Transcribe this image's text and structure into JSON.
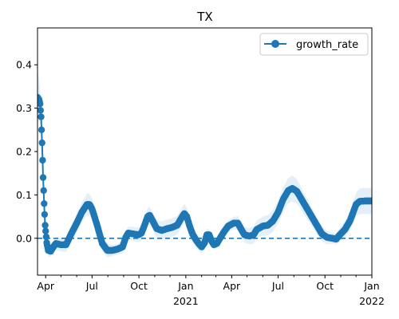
{
  "chart_data": {
    "type": "line",
    "title": "TX",
    "xlabel": "",
    "ylabel": "",
    "x_range": [
      "2020-03-16",
      "2022-01-01"
    ],
    "ylim": [
      -0.085,
      0.485
    ],
    "grid": false,
    "legend": {
      "placement": "top-right",
      "entries": [
        "growth_rate"
      ]
    },
    "colors": {
      "line": "#1f77b4",
      "band": "#c6dbef",
      "zero_line": "#1f77b4"
    },
    "reference_line": {
      "y": 0.0,
      "style": "dashed"
    },
    "y_ticks": [
      {
        "value": 0.0,
        "label": "0.0"
      },
      {
        "value": 0.1,
        "label": "0.1"
      },
      {
        "value": 0.2,
        "label": "0.2"
      },
      {
        "value": 0.3,
        "label": "0.3"
      },
      {
        "value": 0.4,
        "label": "0.4"
      }
    ],
    "x_major_ticks": [
      {
        "date": "2020-04-01",
        "label": "Apr",
        "sublabel": ""
      },
      {
        "date": "2020-07-01",
        "label": "Jul",
        "sublabel": ""
      },
      {
        "date": "2020-10-01",
        "label": "Oct",
        "sublabel": ""
      },
      {
        "date": "2021-01-01",
        "label": "Jan",
        "sublabel": "2021"
      },
      {
        "date": "2021-04-01",
        "label": "Apr",
        "sublabel": ""
      },
      {
        "date": "2021-07-01",
        "label": "Jul",
        "sublabel": ""
      },
      {
        "date": "2021-10-01",
        "label": "Oct",
        "sublabel": ""
      },
      {
        "date": "2022-01-01",
        "label": "Jan",
        "sublabel": "2022"
      }
    ],
    "x_minor_ticks": [
      "2020-05-01",
      "2020-06-01",
      "2020-08-01",
      "2020-09-01",
      "2020-11-01",
      "2020-12-01",
      "2021-02-01",
      "2021-03-01",
      "2021-05-01",
      "2021-06-01",
      "2021-08-01",
      "2021-09-01",
      "2021-11-01",
      "2021-12-01"
    ],
    "series": [
      {
        "name": "growth_rate",
        "points": [
          [
            "2020-03-16",
            0.325
          ],
          [
            "2020-03-19",
            0.32
          ],
          [
            "2020-03-21",
            0.31
          ],
          [
            "2020-03-23",
            0.28
          ],
          [
            "2020-03-25",
            0.22
          ],
          [
            "2020-03-27",
            0.14
          ],
          [
            "2020-03-29",
            0.08
          ],
          [
            "2020-03-31",
            0.03
          ],
          [
            "2020-04-03",
            -0.01
          ],
          [
            "2020-04-06",
            -0.028
          ],
          [
            "2020-04-11",
            -0.03
          ],
          [
            "2020-04-16",
            -0.02
          ],
          [
            "2020-04-21",
            -0.012
          ],
          [
            "2020-05-01",
            -0.015
          ],
          [
            "2020-05-11",
            -0.015
          ],
          [
            "2020-05-21",
            0.01
          ],
          [
            "2020-06-01",
            0.035
          ],
          [
            "2020-06-11",
            0.06
          ],
          [
            "2020-06-21",
            0.078
          ],
          [
            "2020-06-26",
            0.078
          ],
          [
            "2020-07-01",
            0.068
          ],
          [
            "2020-07-11",
            0.03
          ],
          [
            "2020-07-21",
            -0.012
          ],
          [
            "2020-07-31",
            -0.028
          ],
          [
            "2020-08-10",
            -0.028
          ],
          [
            "2020-08-20",
            -0.025
          ],
          [
            "2020-08-30",
            -0.02
          ],
          [
            "2020-09-05",
            0.002
          ],
          [
            "2020-09-10",
            0.012
          ],
          [
            "2020-09-20",
            0.01
          ],
          [
            "2020-09-30",
            0.008
          ],
          [
            "2020-10-06",
            0.012
          ],
          [
            "2020-10-12",
            0.03
          ],
          [
            "2020-10-18",
            0.05
          ],
          [
            "2020-10-22",
            0.053
          ],
          [
            "2020-10-28",
            0.04
          ],
          [
            "2020-11-05",
            0.022
          ],
          [
            "2020-11-15",
            0.018
          ],
          [
            "2020-11-25",
            0.022
          ],
          [
            "2020-12-05",
            0.025
          ],
          [
            "2020-12-15",
            0.03
          ],
          [
            "2020-12-25",
            0.05
          ],
          [
            "2020-12-29",
            0.057
          ],
          [
            "2021-01-03",
            0.05
          ],
          [
            "2021-01-08",
            0.03
          ],
          [
            "2021-01-14",
            0.01
          ],
          [
            "2021-01-20",
            -0.002
          ],
          [
            "2021-01-26",
            -0.012
          ],
          [
            "2021-02-01",
            -0.02
          ],
          [
            "2021-02-07",
            -0.01
          ],
          [
            "2021-02-11",
            0.008
          ],
          [
            "2021-02-16",
            0.008
          ],
          [
            "2021-02-20",
            -0.005
          ],
          [
            "2021-02-25",
            -0.015
          ],
          [
            "2021-03-03",
            -0.012
          ],
          [
            "2021-03-10",
            0.002
          ],
          [
            "2021-03-17",
            0.015
          ],
          [
            "2021-03-25",
            0.028
          ],
          [
            "2021-04-05",
            0.035
          ],
          [
            "2021-04-13",
            0.035
          ],
          [
            "2021-04-20",
            0.02
          ],
          [
            "2021-04-26",
            0.008
          ],
          [
            "2021-05-06",
            0.005
          ],
          [
            "2021-05-14",
            0.008
          ],
          [
            "2021-05-20",
            0.02
          ],
          [
            "2021-06-01",
            0.028
          ],
          [
            "2021-06-11",
            0.03
          ],
          [
            "2021-06-21",
            0.04
          ],
          [
            "2021-07-01",
            0.06
          ],
          [
            "2021-07-11",
            0.09
          ],
          [
            "2021-07-21",
            0.11
          ],
          [
            "2021-07-29",
            0.115
          ],
          [
            "2021-08-07",
            0.108
          ],
          [
            "2021-08-16",
            0.09
          ],
          [
            "2021-08-26",
            0.07
          ],
          [
            "2021-09-05",
            0.05
          ],
          [
            "2021-09-15",
            0.03
          ],
          [
            "2021-09-25",
            0.01
          ],
          [
            "2021-10-05",
            0.002
          ],
          [
            "2021-10-15",
            0.0
          ],
          [
            "2021-10-23",
            -0.002
          ],
          [
            "2021-10-30",
            0.008
          ],
          [
            "2021-11-09",
            0.02
          ],
          [
            "2021-11-19",
            0.04
          ],
          [
            "2021-11-26",
            0.062
          ],
          [
            "2021-12-01",
            0.078
          ],
          [
            "2021-12-08",
            0.085
          ],
          [
            "2021-12-18",
            0.086
          ],
          [
            "2022-01-01",
            0.086
          ]
        ],
        "band_halfwidth": [
          [
            "2020-03-16",
            0.06
          ],
          [
            "2020-03-24",
            0.025
          ],
          [
            "2020-04-10",
            0.012
          ],
          [
            "2020-06-24",
            0.025
          ],
          [
            "2020-08-15",
            0.012
          ],
          [
            "2020-10-22",
            0.02
          ],
          [
            "2020-12-29",
            0.022
          ],
          [
            "2021-03-01",
            0.01
          ],
          [
            "2021-07-29",
            0.03
          ],
          [
            "2021-10-20",
            0.012
          ],
          [
            "2021-12-10",
            0.03
          ],
          [
            "2022-01-01",
            0.03
          ]
        ]
      }
    ]
  }
}
